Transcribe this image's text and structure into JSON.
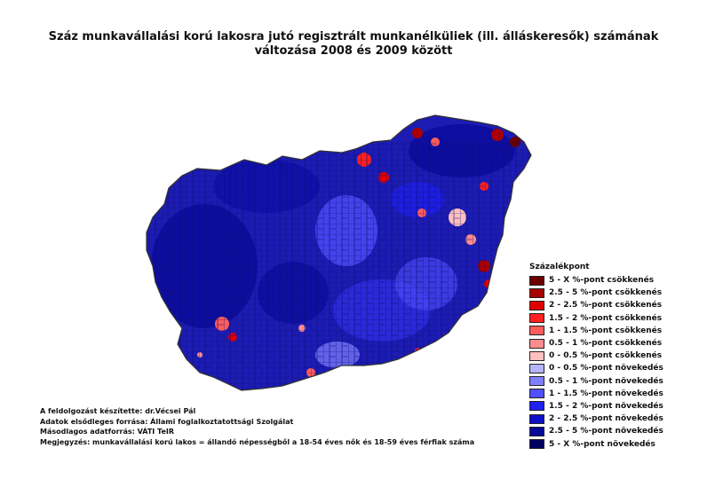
{
  "title": {
    "line1": "Száz munkavállalási korú lakosra jutó regisztrált munkanélküliek (ill. álláskeresők) számának",
    "line2": "változása 2008 és 2009 között"
  },
  "legend": {
    "title": "Százalékpont",
    "items": [
      {
        "label": "5 - X %-pont csökkenés",
        "color": "#6b0000"
      },
      {
        "label": "2.5 - 5 %-pont csökkenés",
        "color": "#a80000"
      },
      {
        "label": "2 - 2.5 %-pont csökkenés",
        "color": "#e00000"
      },
      {
        "label": "1.5 - 2 %-pont csökkenés",
        "color": "#ff2020"
      },
      {
        "label": "1 - 1.5 %-pont csökkenés",
        "color": "#ff5c5c"
      },
      {
        "label": "0.5 - 1 %-pont csökkenés",
        "color": "#ff8c8c"
      },
      {
        "label": "0 - 0.5 %-pont csökkenés",
        "color": "#ffc0c0"
      },
      {
        "label": "0 - 0.5 %-pont növekedés",
        "color": "#b4b4ff"
      },
      {
        "label": "0.5 - 1 %-pont növekedés",
        "color": "#8080ff"
      },
      {
        "label": "1 - 1.5 %-pont növekedés",
        "color": "#5050ff"
      },
      {
        "label": "1.5 - 2 %-pont növekedés",
        "color": "#2020f0"
      },
      {
        "label": "2 - 2.5 %-pont növekedés",
        "color": "#1010c8"
      },
      {
        "label": "2.5 - 5 %-pont növekedés",
        "color": "#0a0a9a"
      },
      {
        "label": "5 - X %-pont növekedés",
        "color": "#000060"
      }
    ]
  },
  "credits": {
    "line1": "A feldolgozást készítette: dr.Vécsei Pál",
    "line2": "Adatok elsődleges forrása: Állami foglalkoztatottsági Szolgálat",
    "line3": "Másodlagos adatforrás: VÁTI TeIR",
    "line4": "Megjegyzés: munkavállalási korú lakos = állandó népességből a 18-54 éves nők és 18-59 éves férfiak száma"
  },
  "colors": {
    "country_base": "#1c1cb4",
    "country_outline": "#333333"
  }
}
